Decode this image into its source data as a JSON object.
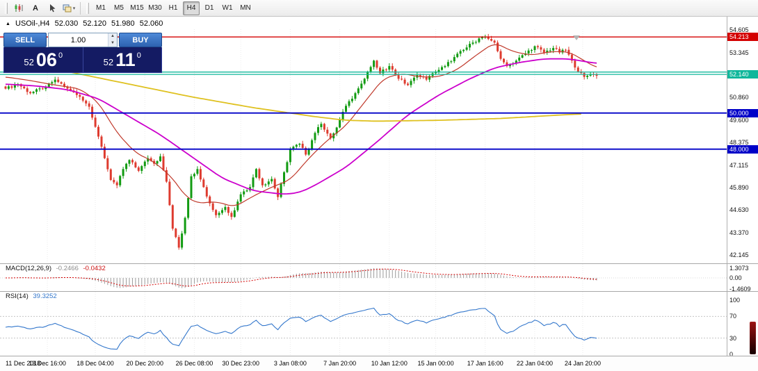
{
  "toolbar": {
    "a_label": "A",
    "timeframes": [
      "M1",
      "M5",
      "M15",
      "M30",
      "H1",
      "H4",
      "D1",
      "W1",
      "MN"
    ],
    "active_timeframe": "H4"
  },
  "chart_header": {
    "symbol_period": "USOil-,H4",
    "open": "52.030",
    "high": "52.120",
    "low": "51.980",
    "close": "52.060"
  },
  "trade_panel": {
    "sell_label": "SELL",
    "buy_label": "BUY",
    "volume": "1.00",
    "sell_price": {
      "prefix": "52",
      "big": "06",
      "sup": "0"
    },
    "buy_price": {
      "prefix": "52",
      "big": "11",
      "sup": "0"
    }
  },
  "price_axis": {
    "ticks": [
      {
        "text": "54.605",
        "v": 54.605
      },
      {
        "text": "53.345",
        "v": 53.345
      },
      {
        "text": "52.145",
        "v": 52.145
      },
      {
        "text": "50.860",
        "v": 50.86
      },
      {
        "text": "49.600",
        "v": 49.6
      },
      {
        "text": "48.375",
        "v": 48.375
      },
      {
        "text": "47.115",
        "v": 47.115
      },
      {
        "text": "45.890",
        "v": 45.89
      },
      {
        "text": "44.630",
        "v": 44.63
      },
      {
        "text": "43.370",
        "v": 43.37
      },
      {
        "text": "42.145",
        "v": 42.145
      }
    ],
    "highlights": [
      {
        "text": "54.213",
        "v": 54.213,
        "bg": "#d40000",
        "fg": "#ffffff"
      },
      {
        "text": "52.140",
        "v": 52.14,
        "bg": "#10b79b",
        "fg": "#ffffff"
      },
      {
        "text": "50.000",
        "v": 50.0,
        "bg": "#0000c8",
        "fg": "#ffffff"
      },
      {
        "text": "48.000",
        "v": 48.0,
        "bg": "#0000c8",
        "fg": "#ffffff"
      }
    ]
  },
  "indicators": {
    "macd_label": "MACD(12,26,9)",
    "macd_main": "-0.2466",
    "macd_signal": "-0.0432",
    "rsi_label": "RSI(14)",
    "rsi_value": "39.3252"
  },
  "chart_data": {
    "type": "candlestick",
    "symbol": "USOil-",
    "timeframe": "H4",
    "last_ohlc": {
      "open": 52.03,
      "high": 52.12,
      "low": 51.98,
      "close": 52.06
    },
    "bars": 192,
    "price_top": 54.605,
    "price_bottom": 42.145,
    "up_color": "#129b12",
    "down_color": "#de3b2f",
    "close_anchors": [
      [
        0,
        51.35
      ],
      [
        4,
        51.6
      ],
      [
        8,
        51.1
      ],
      [
        13,
        51.45
      ],
      [
        16,
        51.85
      ],
      [
        20,
        51.35
      ],
      [
        24,
        50.9
      ],
      [
        27,
        50.35
      ],
      [
        30,
        48.7
      ],
      [
        32,
        47.5
      ],
      [
        34,
        46.3
      ],
      [
        36,
        46.0
      ],
      [
        38,
        46.9
      ],
      [
        40,
        47.4
      ],
      [
        43,
        46.8
      ],
      [
        46,
        47.5
      ],
      [
        48,
        47.2
      ],
      [
        50,
        47.6
      ],
      [
        52,
        46.2
      ],
      [
        53,
        44.9
      ],
      [
        54,
        43.6
      ],
      [
        56,
        42.55
      ],
      [
        58,
        44.2
      ],
      [
        60,
        46.5
      ],
      [
        62,
        46.9
      ],
      [
        64,
        45.9
      ],
      [
        66,
        45.0
      ],
      [
        68,
        44.35
      ],
      [
        71,
        44.8
      ],
      [
        73,
        44.25
      ],
      [
        76,
        45.5
      ],
      [
        79,
        45.9
      ],
      [
        81,
        46.9
      ],
      [
        83,
        46.0
      ],
      [
        86,
        46.35
      ],
      [
        88,
        45.35
      ],
      [
        92,
        48.0
      ],
      [
        95,
        48.3
      ],
      [
        97,
        47.7
      ],
      [
        100,
        48.9
      ],
      [
        102,
        49.4
      ],
      [
        105,
        48.6
      ],
      [
        107,
        49.2
      ],
      [
        110,
        50.4
      ],
      [
        113,
        51.1
      ],
      [
        116,
        51.9
      ],
      [
        119,
        52.9
      ],
      [
        121,
        52.2
      ],
      [
        124,
        52.6
      ],
      [
        127,
        51.9
      ],
      [
        130,
        51.55
      ],
      [
        133,
        52.1
      ],
      [
        136,
        51.85
      ],
      [
        139,
        52.3
      ],
      [
        142,
        52.6
      ],
      [
        145,
        53.1
      ],
      [
        148,
        53.5
      ],
      [
        151,
        53.9
      ],
      [
        154,
        54.2
      ],
      [
        156,
        54.1
      ],
      [
        158,
        53.9
      ],
      [
        160,
        53.0
      ],
      [
        162,
        52.6
      ],
      [
        165,
        52.9
      ],
      [
        168,
        53.3
      ],
      [
        171,
        53.7
      ],
      [
        174,
        53.35
      ],
      [
        177,
        53.6
      ],
      [
        179,
        53.35
      ],
      [
        181,
        53.5
      ],
      [
        183,
        52.9
      ],
      [
        185,
        52.3
      ],
      [
        187,
        52.0
      ],
      [
        189,
        52.15
      ],
      [
        191,
        52.06
      ]
    ],
    "moving_averages": [
      {
        "name": "ma-fast",
        "color": "#c0392b",
        "width": 1.2,
        "anchors": [
          [
            0,
            52.0
          ],
          [
            8,
            51.8
          ],
          [
            16,
            51.55
          ],
          [
            24,
            51.35
          ],
          [
            30,
            50.6
          ],
          [
            36,
            48.9
          ],
          [
            42,
            47.8
          ],
          [
            48,
            47.3
          ],
          [
            54,
            46.4
          ],
          [
            58,
            45.4
          ],
          [
            62,
            45.0
          ],
          [
            68,
            45.1
          ],
          [
            74,
            44.8
          ],
          [
            80,
            45.4
          ],
          [
            86,
            45.9
          ],
          [
            92,
            46.3
          ],
          [
            98,
            47.5
          ],
          [
            104,
            48.5
          ],
          [
            110,
            49.3
          ],
          [
            116,
            50.6
          ],
          [
            122,
            51.9
          ],
          [
            128,
            52.2
          ],
          [
            134,
            52.0
          ],
          [
            140,
            52.0
          ],
          [
            146,
            52.4
          ],
          [
            152,
            53.2
          ],
          [
            158,
            53.9
          ],
          [
            164,
            53.4
          ],
          [
            170,
            53.2
          ],
          [
            176,
            53.4
          ],
          [
            182,
            53.4
          ],
          [
            187,
            52.9
          ],
          [
            191,
            52.5
          ]
        ]
      },
      {
        "name": "ma-medium",
        "color": "#cc00cc",
        "width": 1.8,
        "anchors": [
          [
            0,
            51.6
          ],
          [
            10,
            51.5
          ],
          [
            20,
            51.3
          ],
          [
            30,
            50.8
          ],
          [
            40,
            49.8
          ],
          [
            50,
            48.8
          ],
          [
            60,
            47.6
          ],
          [
            70,
            46.4
          ],
          [
            80,
            45.7
          ],
          [
            90,
            45.5
          ],
          [
            95,
            45.6
          ],
          [
            100,
            46.0
          ],
          [
            110,
            47.0
          ],
          [
            120,
            48.4
          ],
          [
            130,
            49.9
          ],
          [
            140,
            51.0
          ],
          [
            150,
            51.9
          ],
          [
            158,
            52.5
          ],
          [
            166,
            52.8
          ],
          [
            174,
            53.0
          ],
          [
            182,
            53.0
          ],
          [
            191,
            52.75
          ]
        ]
      },
      {
        "name": "ma-slow",
        "color": "#dfc11f",
        "width": 1.8,
        "end_index": 186,
        "anchors": [
          [
            0,
            52.85
          ],
          [
            20,
            52.3
          ],
          [
            40,
            51.6
          ],
          [
            60,
            50.9
          ],
          [
            80,
            50.3
          ],
          [
            100,
            49.8
          ],
          [
            110,
            49.6
          ],
          [
            120,
            49.55
          ],
          [
            140,
            49.6
          ],
          [
            160,
            49.7
          ],
          [
            180,
            49.9
          ],
          [
            186,
            49.95
          ]
        ]
      }
    ],
    "hlines": [
      {
        "price": 54.213,
        "color": "#d40000",
        "width": 1.3
      },
      {
        "price": 52.27,
        "color": "#10b79b",
        "width": 1.3
      },
      {
        "price": 52.14,
        "color": "#10b79b",
        "width": 1.3
      },
      {
        "price": 50.0,
        "color": "#0000c8",
        "width": 1.8
      },
      {
        "price": 48.0,
        "color": "#0000c8",
        "width": 1.8
      }
    ],
    "time_labels": [
      {
        "label": "11 Dec 2018",
        "index": 0
      },
      {
        "label": "13 Dec 16:00",
        "index": 13.5
      },
      {
        "label": "18 Dec 04:00",
        "index": 29
      },
      {
        "label": "20 Dec 20:00",
        "index": 45
      },
      {
        "label": "26 Dec 08:00",
        "index": 61
      },
      {
        "label": "30 Dec 23:00",
        "index": 76
      },
      {
        "label": "3 Jan 08:00",
        "index": 92
      },
      {
        "label": "7 Jan 20:00",
        "index": 108
      },
      {
        "label": "10 Jan 12:00",
        "index": 124
      },
      {
        "label": "15 Jan 00:00",
        "index": 139
      },
      {
        "label": "17 Jan 16:00",
        "index": 155
      },
      {
        "label": "22 Jan 04:00",
        "index": 171
      },
      {
        "label": "24 Jan 20:00",
        "index": 186.5
      }
    ],
    "macd": {
      "label": "MACD(12,26,9)",
      "value_main": "-0.2466",
      "value_signal": "-0.0432",
      "histogram_color": "#9a9a9a",
      "signal_color": "#d40000",
      "axis": [
        {
          "text": "1.3073",
          "v": 1.3073
        },
        {
          "text": "0.00",
          "v": 0
        },
        {
          "text": "-1.4609",
          "v": -1.4609
        }
      ]
    },
    "rsi": {
      "label": "RSI(14)",
      "value": "39.3252",
      "line_color": "#3377cc",
      "levels": [
        70,
        30
      ],
      "axis": [
        {
          "text": "100",
          "v": 100
        },
        {
          "text": "70",
          "v": 70
        },
        {
          "text": "30",
          "v": 30
        },
        {
          "text": "0",
          "v": 0
        }
      ]
    }
  }
}
